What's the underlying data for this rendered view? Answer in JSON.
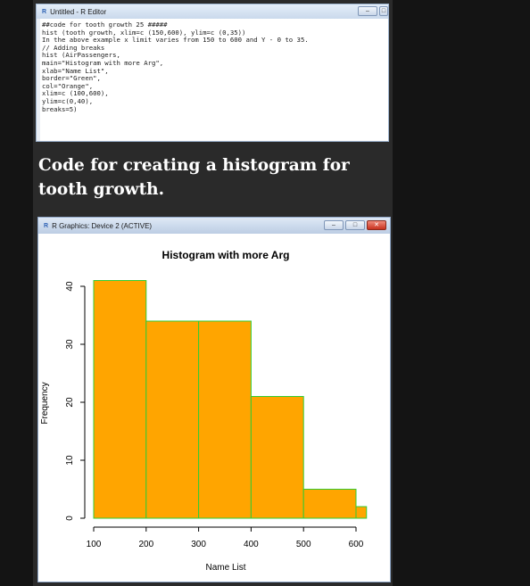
{
  "editor": {
    "title": "Untitled - R Editor",
    "code_lines": [
      "##code for tooth growth 25 #####",
      "hist (tooth growth, xlim=c (150,600), ylim=c (0,35))",
      "In the above example x limit varies from 150 to 600 and Y - 0 to 35.",
      "// Adding breaks",
      "hist (AirPassengers,",
      "main=\"Histogram with more Arg\",",
      "xlab=\"Name List\",",
      "border=\"Green\",",
      "col=\"Orange\",",
      "xlim=c (100,600),",
      "ylim=c(0,40),",
      "breaks=5)"
    ],
    "controls": [
      "minimize-button",
      "restore-button"
    ]
  },
  "caption": "Code for creating a histogram for tooth growth.",
  "graphics": {
    "title": "R Graphics: Device 2 (ACTIVE)",
    "controls": [
      "minimize-button",
      "restore-button",
      "close-button"
    ]
  },
  "chart_data": {
    "type": "bar",
    "title": "Histogram with more Arg",
    "xlabel": "Name List",
    "ylabel": "Frequency",
    "xlim": [
      100,
      600
    ],
    "ylim": [
      0,
      40
    ],
    "bins": [
      {
        "start": 100,
        "end": 200,
        "value": 41
      },
      {
        "start": 200,
        "end": 300,
        "value": 34
      },
      {
        "start": 300,
        "end": 400,
        "value": 34
      },
      {
        "start": 400,
        "end": 500,
        "value": 21
      },
      {
        "start": 500,
        "end": 600,
        "value": 5
      },
      {
        "start": 600,
        "end": 620,
        "value": 2
      }
    ],
    "x_ticks": [
      100,
      200,
      300,
      400,
      500,
      600
    ],
    "y_ticks": [
      0,
      10,
      20,
      30,
      40
    ],
    "bar_color": "#FFA500",
    "border_color": "#33CC33",
    "grid": false
  }
}
